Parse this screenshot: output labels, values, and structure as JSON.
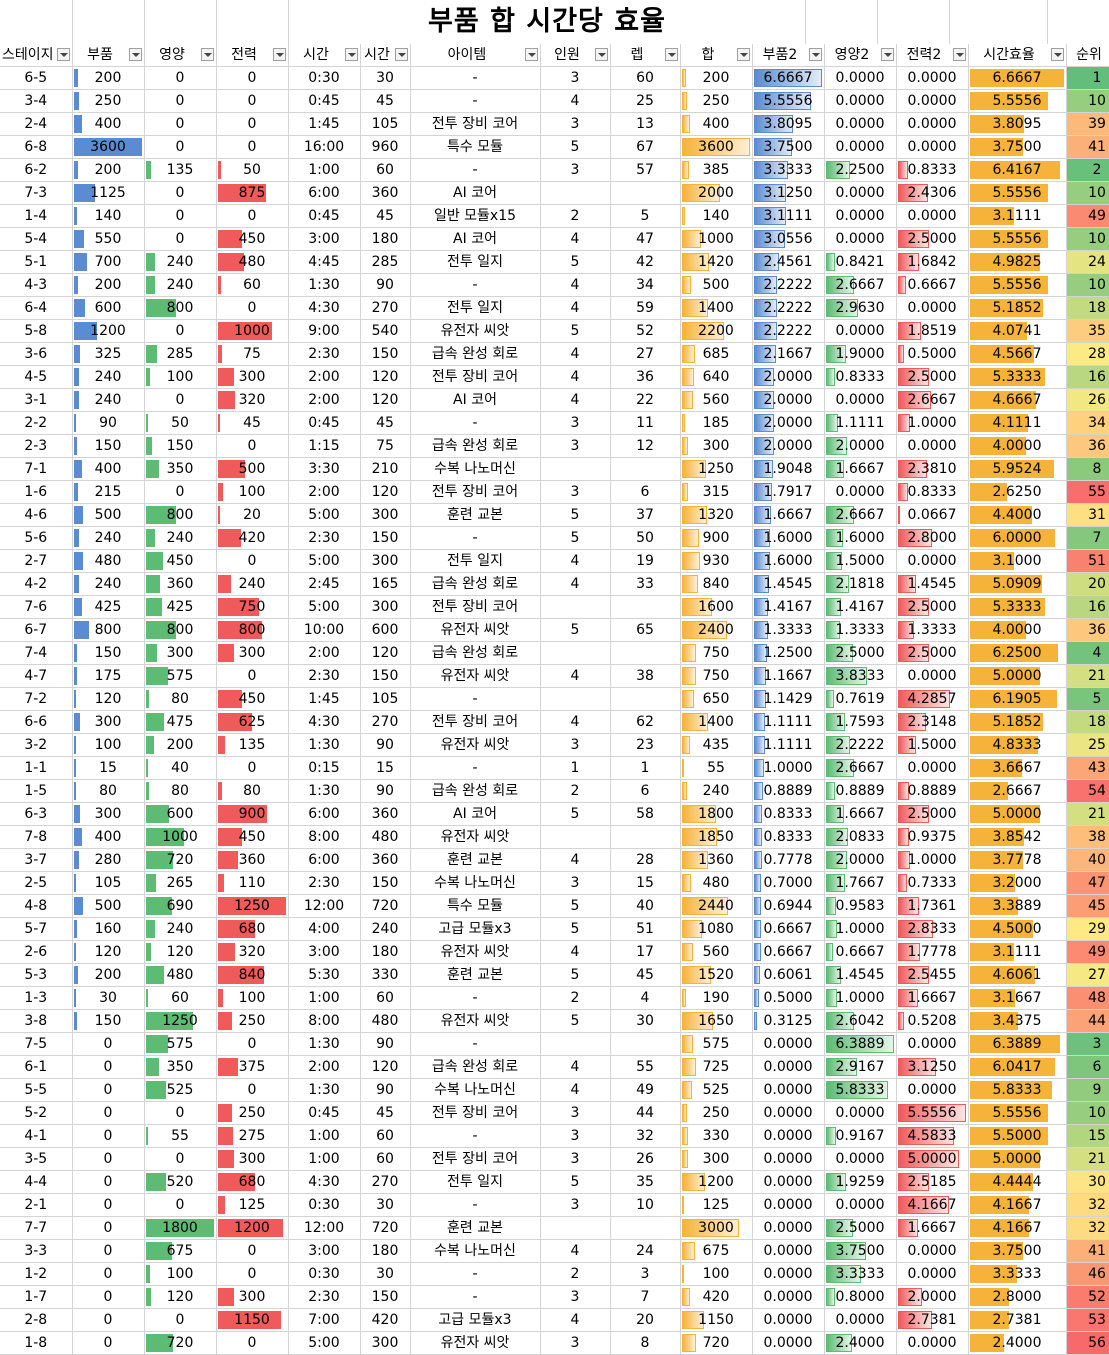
{
  "title": "부품 합 시간당 효율",
  "headers": [
    "스테이지",
    "부품",
    "영양",
    "전력",
    "시간",
    "시간",
    "아이템",
    "인원",
    "렙",
    "합",
    "부품2",
    "영양2",
    "전력2",
    "시간효율",
    "순위"
  ],
  "rows": [
    [
      "6-5",
      "200",
      "0",
      "0",
      "0:30",
      "30",
      "-",
      "3",
      "60",
      "200",
      "6.6667",
      "0.0000",
      "0.0000",
      "6.6667",
      "1"
    ],
    [
      "3-4",
      "250",
      "0",
      "0",
      "0:45",
      "45",
      "-",
      "4",
      "25",
      "250",
      "5.5556",
      "0.0000",
      "0.0000",
      "5.5556",
      "10"
    ],
    [
      "2-4",
      "400",
      "0",
      "0",
      "1:45",
      "105",
      "전투 장비 코어",
      "3",
      "13",
      "400",
      "3.8095",
      "0.0000",
      "0.0000",
      "3.8095",
      "39"
    ],
    [
      "6-8",
      "3600",
      "0",
      "0",
      "16:00",
      "960",
      "특수 모듈",
      "5",
      "67",
      "3600",
      "3.7500",
      "0.0000",
      "0.0000",
      "3.7500",
      "41"
    ],
    [
      "6-2",
      "200",
      "135",
      "50",
      "1:00",
      "60",
      "-",
      "3",
      "57",
      "385",
      "3.3333",
      "2.2500",
      "0.8333",
      "6.4167",
      "2"
    ],
    [
      "7-3",
      "1125",
      "0",
      "875",
      "6:00",
      "360",
      "AI 코어",
      "",
      "",
      "2000",
      "3.1250",
      "0.0000",
      "2.4306",
      "5.5556",
      "10"
    ],
    [
      "1-4",
      "140",
      "0",
      "0",
      "0:45",
      "45",
      "일반 모듈x15",
      "2",
      "5",
      "140",
      "3.1111",
      "0.0000",
      "0.0000",
      "3.1111",
      "49"
    ],
    [
      "5-4",
      "550",
      "0",
      "450",
      "3:00",
      "180",
      "AI 코어",
      "4",
      "47",
      "1000",
      "3.0556",
      "0.0000",
      "2.5000",
      "5.5556",
      "10"
    ],
    [
      "5-1",
      "700",
      "240",
      "480",
      "4:45",
      "285",
      "전투 일지",
      "5",
      "42",
      "1420",
      "2.4561",
      "0.8421",
      "1.6842",
      "4.9825",
      "24"
    ],
    [
      "4-3",
      "200",
      "240",
      "60",
      "1:30",
      "90",
      "-",
      "4",
      "34",
      "500",
      "2.2222",
      "2.6667",
      "0.6667",
      "5.5556",
      "10"
    ],
    [
      "6-4",
      "600",
      "800",
      "0",
      "4:30",
      "270",
      "전투 일지",
      "4",
      "59",
      "1400",
      "2.2222",
      "2.9630",
      "0.0000",
      "5.1852",
      "18"
    ],
    [
      "5-8",
      "1200",
      "0",
      "1000",
      "9:00",
      "540",
      "유전자 씨앗",
      "5",
      "52",
      "2200",
      "2.2222",
      "0.0000",
      "1.8519",
      "4.0741",
      "35"
    ],
    [
      "3-6",
      "325",
      "285",
      "75",
      "2:30",
      "150",
      "급속 완성 회로",
      "4",
      "27",
      "685",
      "2.1667",
      "1.9000",
      "0.5000",
      "4.5667",
      "28"
    ],
    [
      "4-5",
      "240",
      "100",
      "300",
      "2:00",
      "120",
      "전투 장비 코어",
      "4",
      "36",
      "640",
      "2.0000",
      "0.8333",
      "2.5000",
      "5.3333",
      "16"
    ],
    [
      "3-1",
      "240",
      "0",
      "320",
      "2:00",
      "120",
      "AI 코어",
      "4",
      "22",
      "560",
      "2.0000",
      "0.0000",
      "2.6667",
      "4.6667",
      "26"
    ],
    [
      "2-2",
      "90",
      "50",
      "45",
      "0:45",
      "45",
      "-",
      "3",
      "11",
      "185",
      "2.0000",
      "1.1111",
      "1.0000",
      "4.1111",
      "34"
    ],
    [
      "2-3",
      "150",
      "150",
      "0",
      "1:15",
      "75",
      "급속 완성 회로",
      "3",
      "12",
      "300",
      "2.0000",
      "2.0000",
      "0.0000",
      "4.0000",
      "36"
    ],
    [
      "7-1",
      "400",
      "350",
      "500",
      "3:30",
      "210",
      "수복 나노머신",
      "",
      "",
      "1250",
      "1.9048",
      "1.6667",
      "2.3810",
      "5.9524",
      "8"
    ],
    [
      "1-6",
      "215",
      "0",
      "100",
      "2:00",
      "120",
      "전투 장비 코어",
      "3",
      "6",
      "315",
      "1.7917",
      "0.0000",
      "0.8333",
      "2.6250",
      "55"
    ],
    [
      "4-6",
      "500",
      "800",
      "20",
      "5:00",
      "300",
      "훈련 교본",
      "5",
      "37",
      "1320",
      "1.6667",
      "2.6667",
      "0.0667",
      "4.4000",
      "31"
    ],
    [
      "5-6",
      "240",
      "240",
      "420",
      "2:30",
      "150",
      "-",
      "5",
      "50",
      "900",
      "1.6000",
      "1.6000",
      "2.8000",
      "6.0000",
      "7"
    ],
    [
      "2-7",
      "480",
      "450",
      "0",
      "5:00",
      "300",
      "전투 일지",
      "4",
      "19",
      "930",
      "1.6000",
      "1.5000",
      "0.0000",
      "3.1000",
      "51"
    ],
    [
      "4-2",
      "240",
      "360",
      "240",
      "2:45",
      "165",
      "급속 완성 회로",
      "4",
      "33",
      "840",
      "1.4545",
      "2.1818",
      "1.4545",
      "5.0909",
      "20"
    ],
    [
      "7-6",
      "425",
      "425",
      "750",
      "5:00",
      "300",
      "전투 장비 코어",
      "",
      "",
      "1600",
      "1.4167",
      "1.4167",
      "2.5000",
      "5.3333",
      "16"
    ],
    [
      "6-7",
      "800",
      "800",
      "800",
      "10:00",
      "600",
      "유전자 씨앗",
      "5",
      "65",
      "2400",
      "1.3333",
      "1.3333",
      "1.3333",
      "4.0000",
      "36"
    ],
    [
      "7-4",
      "150",
      "300",
      "300",
      "2:00",
      "120",
      "급속 완성 회로",
      "",
      "",
      "750",
      "1.2500",
      "2.5000",
      "2.5000",
      "6.2500",
      "4"
    ],
    [
      "4-7",
      "175",
      "575",
      "0",
      "2:30",
      "150",
      "유전자 씨앗",
      "4",
      "38",
      "750",
      "1.1667",
      "3.8333",
      "0.0000",
      "5.0000",
      "21"
    ],
    [
      "7-2",
      "120",
      "80",
      "450",
      "1:45",
      "105",
      "-",
      "",
      "",
      "650",
      "1.1429",
      "0.7619",
      "4.2857",
      "6.1905",
      "5"
    ],
    [
      "6-6",
      "300",
      "475",
      "625",
      "4:30",
      "270",
      "전투 장비 코어",
      "4",
      "62",
      "1400",
      "1.1111",
      "1.7593",
      "2.3148",
      "5.1852",
      "18"
    ],
    [
      "3-2",
      "100",
      "200",
      "135",
      "1:30",
      "90",
      "유전자 씨앗",
      "3",
      "23",
      "435",
      "1.1111",
      "2.2222",
      "1.5000",
      "4.8333",
      "25"
    ],
    [
      "1-1",
      "15",
      "40",
      "0",
      "0:15",
      "15",
      "-",
      "1",
      "1",
      "55",
      "1.0000",
      "2.6667",
      "0.0000",
      "3.6667",
      "43"
    ],
    [
      "1-5",
      "80",
      "80",
      "80",
      "1:30",
      "90",
      "급속 완성 회로",
      "2",
      "6",
      "240",
      "0.8889",
      "0.8889",
      "0.8889",
      "2.6667",
      "54"
    ],
    [
      "6-3",
      "300",
      "600",
      "900",
      "6:00",
      "360",
      "AI 코어",
      "5",
      "58",
      "1800",
      "0.8333",
      "1.6667",
      "2.5000",
      "5.0000",
      "21"
    ],
    [
      "7-8",
      "400",
      "1000",
      "450",
      "8:00",
      "480",
      "유전자 씨앗",
      "",
      "",
      "1850",
      "0.8333",
      "2.0833",
      "0.9375",
      "3.8542",
      "38"
    ],
    [
      "3-7",
      "280",
      "720",
      "360",
      "6:00",
      "360",
      "훈련 교본",
      "4",
      "28",
      "1360",
      "0.7778",
      "2.0000",
      "1.0000",
      "3.7778",
      "40"
    ],
    [
      "2-5",
      "105",
      "265",
      "110",
      "2:30",
      "150",
      "수복 나노머신",
      "3",
      "15",
      "480",
      "0.7000",
      "1.7667",
      "0.7333",
      "3.2000",
      "47"
    ],
    [
      "4-8",
      "500",
      "690",
      "1250",
      "12:00",
      "720",
      "특수 모듈",
      "5",
      "40",
      "2440",
      "0.6944",
      "0.9583",
      "1.7361",
      "3.3889",
      "45"
    ],
    [
      "5-7",
      "160",
      "240",
      "680",
      "4:00",
      "240",
      "고급 모듈x3",
      "5",
      "51",
      "1080",
      "0.6667",
      "1.0000",
      "2.8333",
      "4.5000",
      "29"
    ],
    [
      "2-6",
      "120",
      "120",
      "320",
      "3:00",
      "180",
      "유전자 씨앗",
      "4",
      "17",
      "560",
      "0.6667",
      "0.6667",
      "1.7778",
      "3.1111",
      "49"
    ],
    [
      "5-3",
      "200",
      "480",
      "840",
      "5:30",
      "330",
      "훈련 교본",
      "5",
      "45",
      "1520",
      "0.6061",
      "1.4545",
      "2.5455",
      "4.6061",
      "27"
    ],
    [
      "1-3",
      "30",
      "60",
      "100",
      "1:00",
      "60",
      "-",
      "2",
      "4",
      "190",
      "0.5000",
      "1.0000",
      "1.6667",
      "3.1667",
      "48"
    ],
    [
      "3-8",
      "150",
      "1250",
      "250",
      "8:00",
      "480",
      "유전자 씨앗",
      "5",
      "30",
      "1650",
      "0.3125",
      "2.6042",
      "0.5208",
      "3.4375",
      "44"
    ],
    [
      "7-5",
      "0",
      "575",
      "0",
      "1:30",
      "90",
      "-",
      "",
      "",
      "575",
      "0.0000",
      "6.3889",
      "0.0000",
      "6.3889",
      "3"
    ],
    [
      "6-1",
      "0",
      "350",
      "375",
      "2:00",
      "120",
      "급속 완성 회로",
      "4",
      "55",
      "725",
      "0.0000",
      "2.9167",
      "3.1250",
      "6.0417",
      "6"
    ],
    [
      "5-5",
      "0",
      "525",
      "0",
      "1:30",
      "90",
      "수복 나노머신",
      "4",
      "49",
      "525",
      "0.0000",
      "5.8333",
      "0.0000",
      "5.8333",
      "9"
    ],
    [
      "5-2",
      "0",
      "0",
      "250",
      "0:45",
      "45",
      "전투 장비 코어",
      "3",
      "44",
      "250",
      "0.0000",
      "0.0000",
      "5.5556",
      "5.5556",
      "10"
    ],
    [
      "4-1",
      "0",
      "55",
      "275",
      "1:00",
      "60",
      "-",
      "3",
      "32",
      "330",
      "0.0000",
      "0.9167",
      "4.5833",
      "5.5000",
      "15"
    ],
    [
      "3-5",
      "0",
      "0",
      "300",
      "1:00",
      "60",
      "전투 장비 코어",
      "3",
      "26",
      "300",
      "0.0000",
      "0.0000",
      "5.0000",
      "5.0000",
      "21"
    ],
    [
      "4-4",
      "0",
      "520",
      "680",
      "4:30",
      "270",
      "전투 일지",
      "5",
      "35",
      "1200",
      "0.0000",
      "1.9259",
      "2.5185",
      "4.4444",
      "30"
    ],
    [
      "2-1",
      "0",
      "0",
      "125",
      "0:30",
      "30",
      "-",
      "3",
      "10",
      "125",
      "0.0000",
      "0.0000",
      "4.1667",
      "4.1667",
      "32"
    ],
    [
      "7-7",
      "0",
      "1800",
      "1200",
      "12:00",
      "720",
      "훈련 교본",
      "",
      "",
      "3000",
      "0.0000",
      "2.5000",
      "1.6667",
      "4.1667",
      "32"
    ],
    [
      "3-3",
      "0",
      "675",
      "0",
      "3:00",
      "180",
      "수복 나노머신",
      "4",
      "24",
      "675",
      "0.0000",
      "3.7500",
      "0.0000",
      "3.7500",
      "41"
    ],
    [
      "1-2",
      "0",
      "100",
      "0",
      "0:30",
      "30",
      "-",
      "2",
      "3",
      "100",
      "0.0000",
      "3.3333",
      "0.0000",
      "3.3333",
      "46"
    ],
    [
      "1-7",
      "0",
      "120",
      "300",
      "2:30",
      "150",
      "-",
      "3",
      "7",
      "420",
      "0.0000",
      "0.8000",
      "2.0000",
      "2.8000",
      "52"
    ],
    [
      "2-8",
      "0",
      "0",
      "1150",
      "7:00",
      "420",
      "고급 모듈x3",
      "4",
      "20",
      "1150",
      "0.0000",
      "0.0000",
      "2.7381",
      "2.7381",
      "53"
    ],
    [
      "1-8",
      "0",
      "720",
      "0",
      "5:00",
      "300",
      "유전자 씨앗",
      "3",
      "8",
      "720",
      "0.0000",
      "2.4000",
      "0.0000",
      "2.4000",
      "56"
    ]
  ],
  "colors": {
    "parts": "#5b8bd0",
    "food": "#5dbb73",
    "power": "#f05a5a",
    "sum": "#f6b33a",
    "rank_best": "#63be7b",
    "rank_mid": "#ffeb84",
    "rank_worst": "#f8696b"
  }
}
